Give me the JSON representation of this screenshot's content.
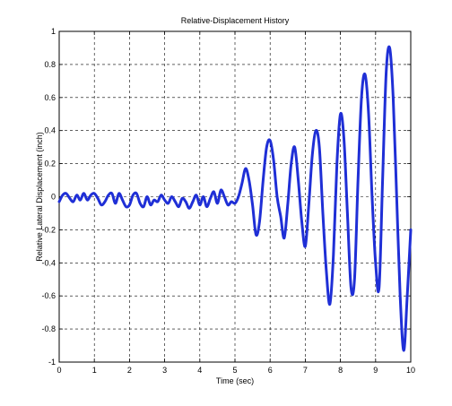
{
  "chart_data": {
    "type": "line",
    "title": "Relative-Displacement History",
    "xlabel": "Time (sec)",
    "ylabel": "Relative Lateral Displacement (inch)",
    "xlim": [
      0,
      10
    ],
    "ylim": [
      -1,
      1
    ],
    "xticks": [
      "0",
      "1",
      "2",
      "3",
      "4",
      "5",
      "6",
      "7",
      "8",
      "9",
      "10"
    ],
    "yticks": [
      "1",
      "0.8",
      "0.6",
      "0.4",
      "0.2",
      "0",
      "-0.2",
      "-0.4",
      "-0.6",
      "-0.8",
      "-1"
    ],
    "grid": true,
    "series_color": "#1f2fd6",
    "series": [
      {
        "x": [
          0.0,
          0.1,
          0.2,
          0.3,
          0.4,
          0.5,
          0.6,
          0.7,
          0.8,
          0.9,
          1.0,
          1.1,
          1.2,
          1.3,
          1.4,
          1.5,
          1.6,
          1.7,
          1.8,
          1.9,
          2.0,
          2.1,
          2.2,
          2.3,
          2.4,
          2.5,
          2.6,
          2.7,
          2.8,
          2.9,
          3.0,
          3.1,
          3.2,
          3.3,
          3.4,
          3.5,
          3.6,
          3.7,
          3.8,
          3.9,
          4.0,
          4.1,
          4.2,
          4.3,
          4.4,
          4.5,
          4.6,
          4.7,
          4.8,
          4.9,
          5.0,
          5.1,
          5.2,
          5.3,
          5.4,
          5.5,
          5.6,
          5.7,
          5.8,
          5.9,
          6.0,
          6.1,
          6.2,
          6.3,
          6.4,
          6.5,
          6.6,
          6.7,
          6.8,
          6.9,
          7.0,
          7.1,
          7.2,
          7.3,
          7.4,
          7.5,
          7.6,
          7.7,
          7.8,
          7.9,
          8.0,
          8.1,
          8.2,
          8.3,
          8.4,
          8.5,
          8.6,
          8.7,
          8.8,
          8.9,
          9.0,
          9.1,
          9.2,
          9.3,
          9.4,
          9.5,
          9.6,
          9.7,
          9.8,
          9.9,
          10.0
        ],
        "y": [
          -0.03,
          0.01,
          0.02,
          -0.01,
          -0.03,
          0.01,
          -0.02,
          0.02,
          -0.02,
          0.01,
          0.02,
          -0.01,
          -0.05,
          -0.03,
          0.01,
          0.02,
          -0.04,
          0.02,
          -0.02,
          -0.06,
          -0.05,
          0.01,
          0.02,
          -0.04,
          -0.06,
          0.0,
          -0.05,
          -0.02,
          -0.03,
          0.01,
          -0.02,
          -0.04,
          0.0,
          -0.03,
          -0.06,
          -0.01,
          -0.03,
          -0.07,
          -0.03,
          0.01,
          -0.05,
          0.0,
          -0.06,
          -0.01,
          0.03,
          -0.04,
          0.04,
          0.0,
          -0.05,
          -0.03,
          -0.04,
          0.0,
          0.08,
          0.17,
          0.1,
          -0.05,
          -0.23,
          -0.15,
          0.1,
          0.3,
          0.34,
          0.22,
          0.0,
          -0.12,
          -0.25,
          -0.05,
          0.2,
          0.3,
          0.1,
          -0.15,
          -0.3,
          -0.05,
          0.25,
          0.4,
          0.3,
          -0.1,
          -0.45,
          -0.65,
          -0.35,
          0.2,
          0.5,
          0.35,
          -0.1,
          -0.55,
          -0.5,
          0.1,
          0.6,
          0.74,
          0.5,
          0.0,
          -0.4,
          -0.55,
          0.1,
          0.75,
          0.9,
          0.6,
          0.0,
          -0.6,
          -0.93,
          -0.6,
          -0.2
        ]
      }
    ]
  }
}
